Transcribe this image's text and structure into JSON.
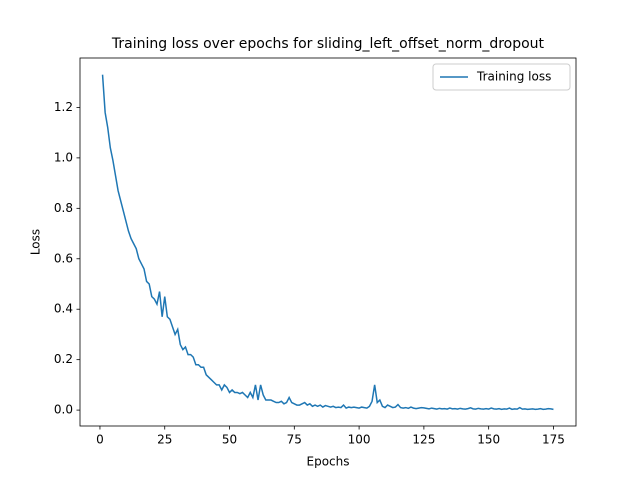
{
  "chart_data": {
    "type": "line",
    "title": "Training loss over epochs for sliding_left_offset_norm_dropout",
    "xlabel": "Epochs",
    "ylabel": "Loss",
    "xlim": [
      -7.7,
      183.7
    ],
    "ylim": [
      -0.063,
      1.396
    ],
    "xticks": [
      0,
      25,
      50,
      75,
      100,
      125,
      150,
      175
    ],
    "yticks": [
      {
        "value": 0,
        "label": "0.0"
      },
      0.2,
      0.4,
      0.6,
      0.8,
      {
        "value": 1,
        "label": "1.0"
      },
      1.2
    ],
    "legend": "upper right",
    "x": [
      1,
      2,
      3,
      4,
      5,
      6,
      7,
      8,
      9,
      10,
      11,
      12,
      13,
      14,
      15,
      16,
      17,
      18,
      19,
      20,
      21,
      22,
      23,
      24,
      25,
      26,
      27,
      28,
      29,
      30,
      31,
      32,
      33,
      34,
      35,
      36,
      37,
      38,
      39,
      40,
      41,
      42,
      43,
      44,
      45,
      46,
      47,
      48,
      49,
      50,
      51,
      52,
      53,
      54,
      55,
      56,
      57,
      58,
      59,
      60,
      61,
      62,
      63,
      64,
      65,
      66,
      67,
      68,
      69,
      70,
      71,
      72,
      73,
      74,
      75,
      76,
      77,
      78,
      79,
      80,
      81,
      82,
      83,
      84,
      85,
      86,
      87,
      88,
      89,
      90,
      91,
      92,
      93,
      94,
      95,
      96,
      97,
      98,
      99,
      100,
      101,
      102,
      103,
      104,
      105,
      106,
      107,
      108,
      109,
      110,
      111,
      112,
      113,
      114,
      115,
      116,
      117,
      118,
      119,
      120,
      121,
      122,
      123,
      124,
      125,
      126,
      127,
      128,
      129,
      130,
      131,
      132,
      133,
      134,
      135,
      136,
      137,
      138,
      139,
      140,
      141,
      142,
      143,
      144,
      145,
      146,
      147,
      148,
      149,
      150,
      151,
      152,
      153,
      154,
      155,
      156,
      157,
      158,
      159,
      160,
      161,
      162,
      163,
      164,
      165,
      166,
      167,
      168,
      169,
      170,
      171,
      172,
      173,
      174,
      175
    ],
    "series": [
      {
        "name": "Training loss",
        "color": "#1f77b4",
        "values": [
          1.33,
          1.18,
          1.12,
          1.04,
          0.99,
          0.93,
          0.87,
          0.83,
          0.79,
          0.75,
          0.71,
          0.68,
          0.66,
          0.64,
          0.6,
          0.58,
          0.56,
          0.51,
          0.5,
          0.45,
          0.44,
          0.42,
          0.47,
          0.37,
          0.45,
          0.37,
          0.36,
          0.33,
          0.3,
          0.32,
          0.26,
          0.24,
          0.25,
          0.22,
          0.22,
          0.21,
          0.18,
          0.18,
          0.17,
          0.17,
          0.14,
          0.13,
          0.12,
          0.11,
          0.1,
          0.1,
          0.08,
          0.1,
          0.09,
          0.07,
          0.08,
          0.07,
          0.07,
          0.065,
          0.07,
          0.06,
          0.05,
          0.07,
          0.05,
          0.1,
          0.04,
          0.1,
          0.06,
          0.04,
          0.04,
          0.04,
          0.035,
          0.03,
          0.03,
          0.035,
          0.025,
          0.03,
          0.05,
          0.03,
          0.025,
          0.02,
          0.02,
          0.025,
          0.03,
          0.02,
          0.025,
          0.015,
          0.02,
          0.015,
          0.02,
          0.012,
          0.018,
          0.015,
          0.012,
          0.015,
          0.01,
          0.012,
          0.01,
          0.02,
          0.008,
          0.012,
          0.01,
          0.012,
          0.01,
          0.008,
          0.012,
          0.01,
          0.008,
          0.015,
          0.035,
          0.1,
          0.03,
          0.04,
          0.015,
          0.01,
          0.02,
          0.015,
          0.01,
          0.012,
          0.022,
          0.01,
          0.008,
          0.01,
          0.007,
          0.012,
          0.008,
          0.006,
          0.008,
          0.01,
          0.009,
          0.007,
          0.005,
          0.008,
          0.006,
          0.004,
          0.007,
          0.005,
          0.006,
          0.004,
          0.008,
          0.005,
          0.006,
          0.004,
          0.007,
          0.005,
          0.004,
          0.006,
          0.009,
          0.005,
          0.004,
          0.007,
          0.005,
          0.004,
          0.006,
          0.004,
          0.008,
          0.005,
          0.004,
          0.006,
          0.003,
          0.005,
          0.004,
          0.008,
          0.003,
          0.005,
          0.004,
          0.01,
          0.004,
          0.005,
          0.003,
          0.004,
          0.005,
          0.003,
          0.004,
          0.006,
          0.003,
          0.004,
          0.006,
          0.005,
          0.003
        ]
      }
    ]
  }
}
